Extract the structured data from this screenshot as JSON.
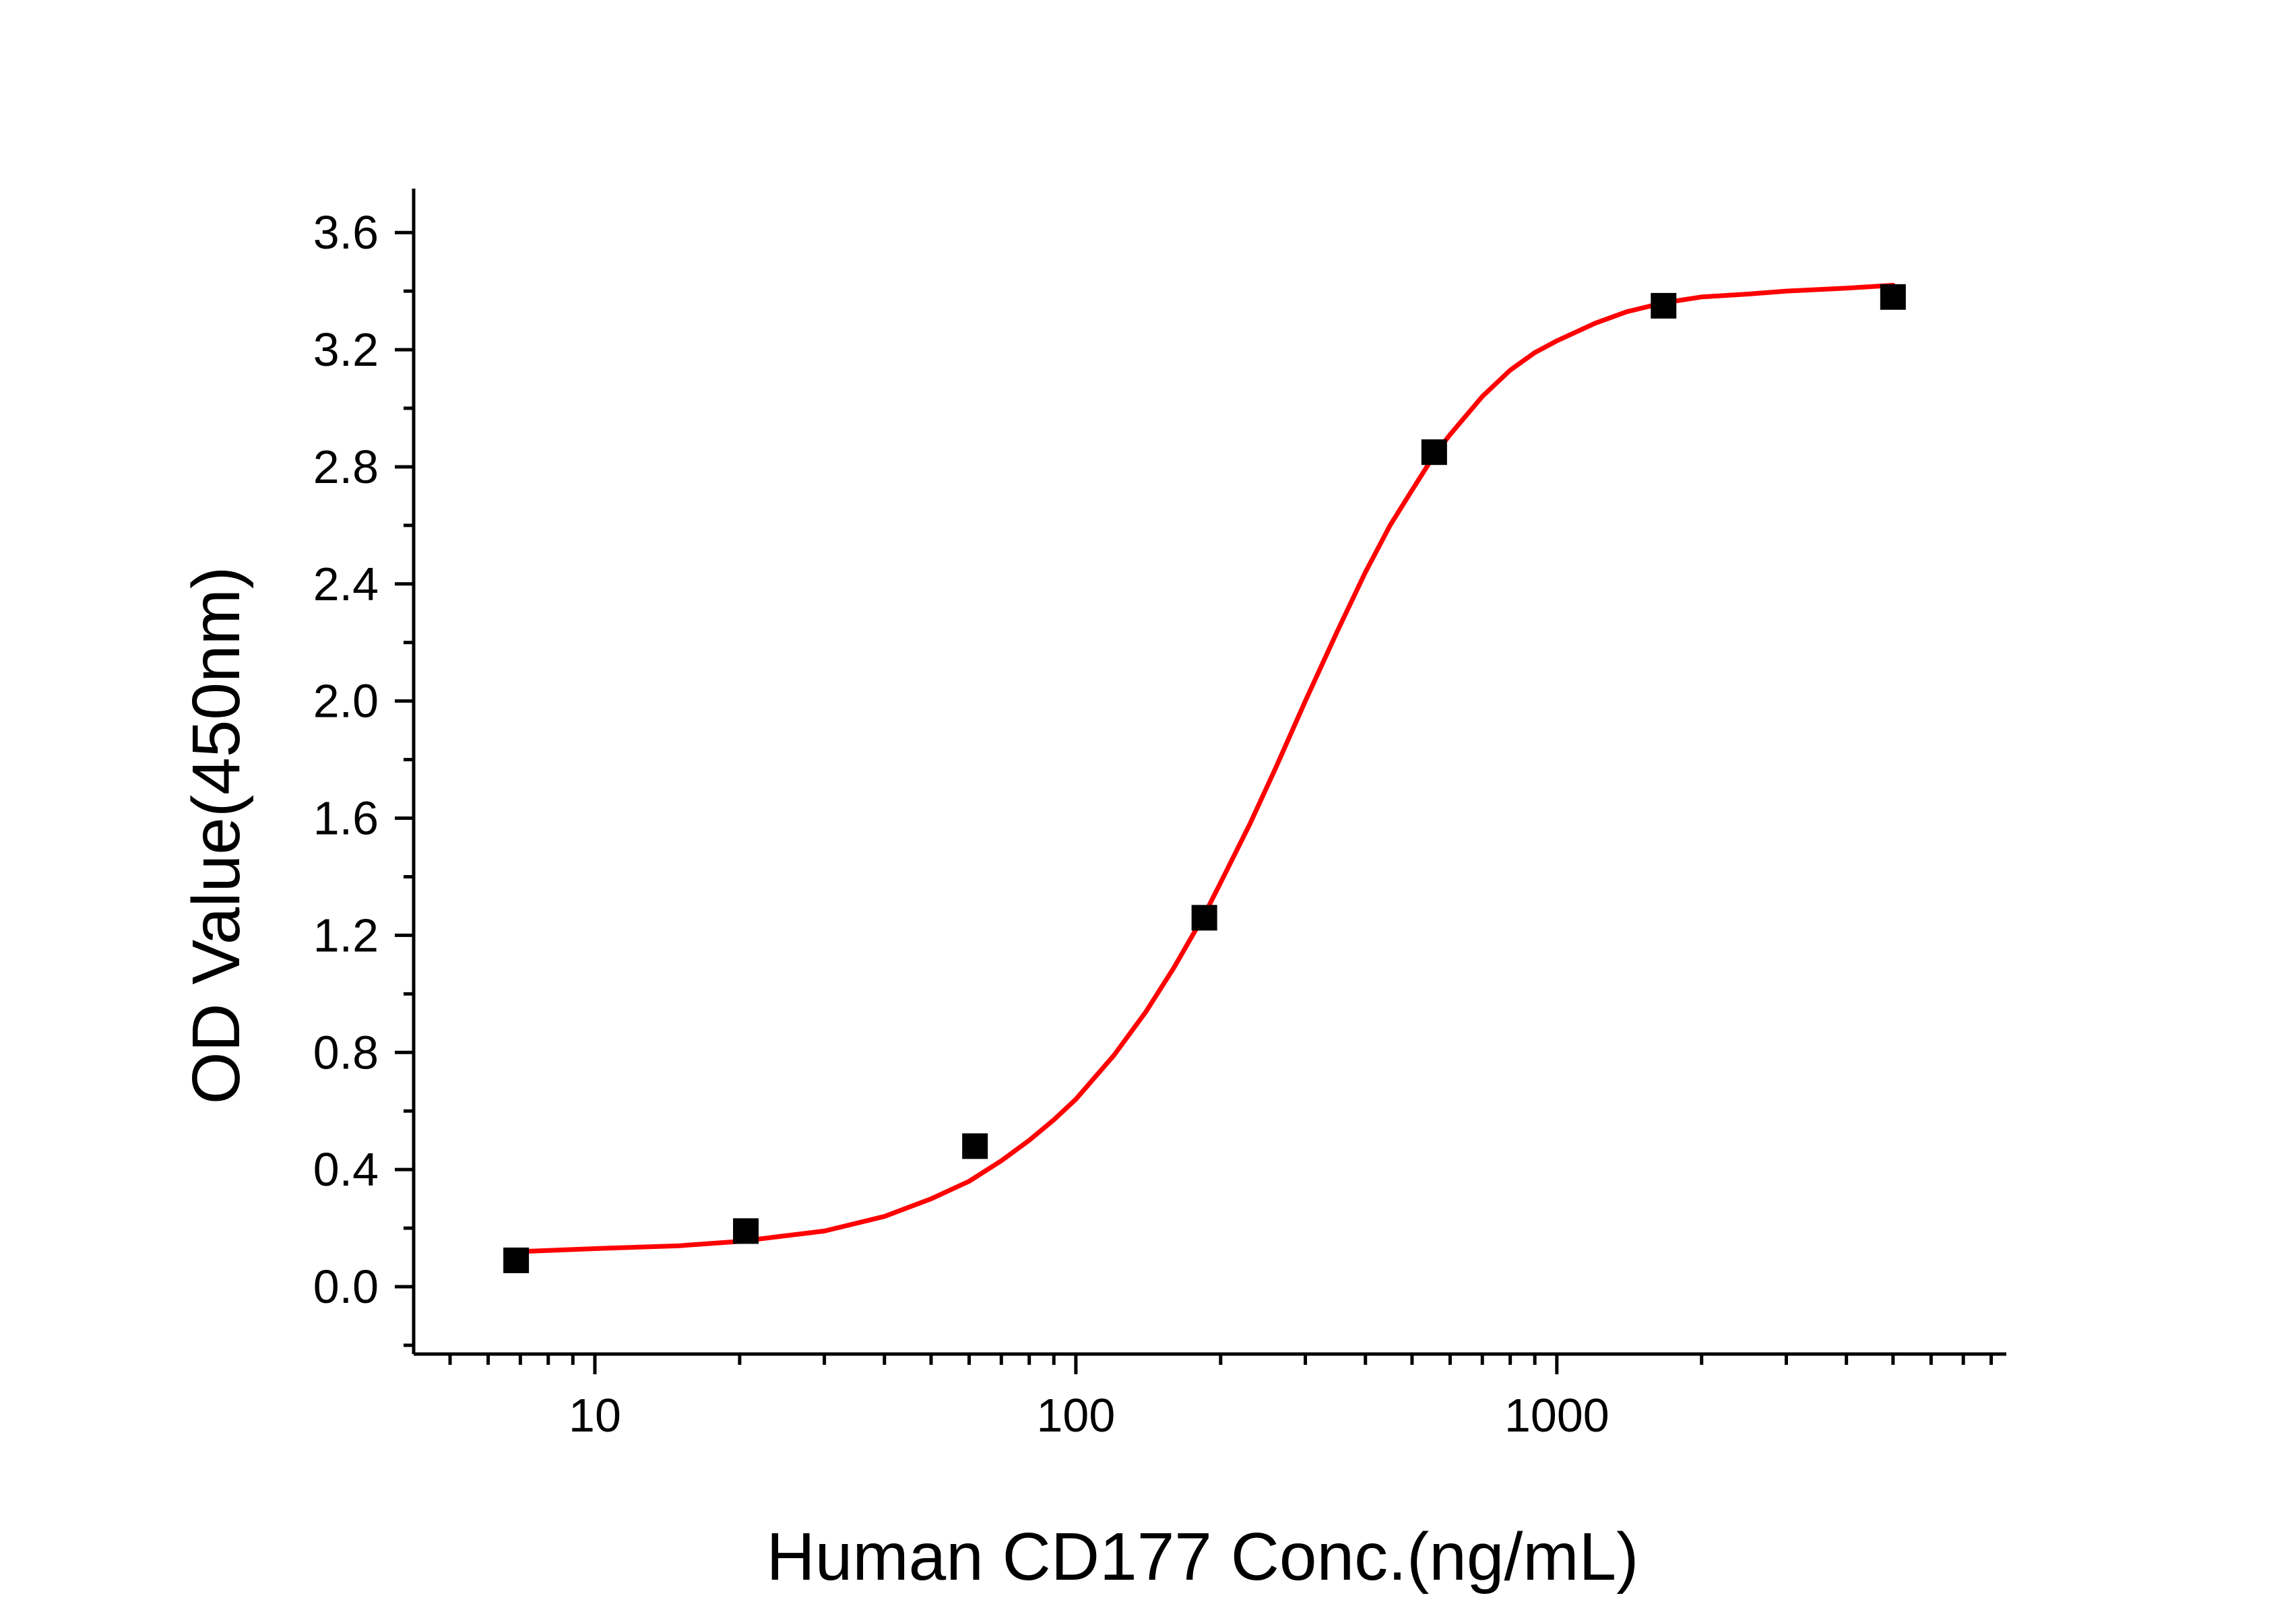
{
  "chart_data": {
    "type": "scatter",
    "xlabel": "Human CD177 Conc.(ng/mL)",
    "ylabel": "OD Value(450nm)",
    "x_scale": "log",
    "xlim": [
      4.2,
      8600
    ],
    "ylim": [
      -0.23,
      3.75
    ],
    "x_ticks": [
      10,
      100,
      1000
    ],
    "x_tick_labels": [
      "10",
      "100",
      "1000"
    ],
    "y_ticks": [
      0.0,
      0.4,
      0.8,
      1.2,
      1.6,
      2.0,
      2.4,
      2.8,
      3.2,
      3.6
    ],
    "y_tick_labels": [
      "0.0",
      "0.4",
      "0.8",
      "1.2",
      "1.6",
      "2.0",
      "2.4",
      "2.8",
      "3.2",
      "3.6"
    ],
    "grid": false,
    "series": [
      {
        "kind": "points",
        "marker": "square",
        "color": "#000000",
        "x": [
          6.86,
          20.6,
          61.7,
          185,
          556,
          1667,
          5000
        ],
        "y": [
          0.09,
          0.19,
          0.48,
          1.26,
          2.85,
          3.35,
          3.38
        ]
      },
      {
        "kind": "fit-curve",
        "color": "#ff0000",
        "x": [
          7.0,
          10,
          15,
          20,
          30,
          40,
          50,
          60,
          70,
          80,
          90,
          100,
          120,
          140,
          160,
          185,
          200,
          230,
          260,
          300,
          350,
          400,
          450,
          500,
          556,
          600,
          700,
          800,
          900,
          1000,
          1200,
          1400,
          1667,
          2000,
          2500,
          3000,
          4000,
          5000
        ],
        "y": [
          0.12,
          0.13,
          0.14,
          0.155,
          0.19,
          0.24,
          0.3,
          0.36,
          0.43,
          0.5,
          0.57,
          0.64,
          0.79,
          0.94,
          1.09,
          1.27,
          1.38,
          1.58,
          1.77,
          2.0,
          2.24,
          2.44,
          2.6,
          2.72,
          2.84,
          2.91,
          3.04,
          3.13,
          3.19,
          3.23,
          3.29,
          3.33,
          3.36,
          3.38,
          3.39,
          3.4,
          3.41,
          3.42
        ]
      }
    ]
  }
}
